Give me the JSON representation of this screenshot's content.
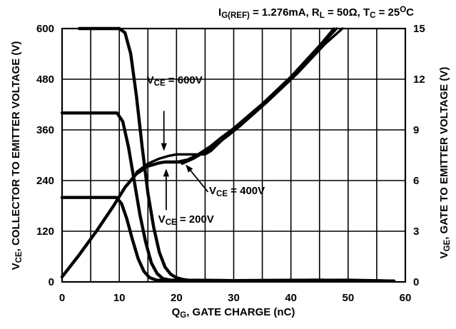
{
  "chart_data": {
    "type": "line",
    "title": {
      "parts": [
        {
          "t": "I",
          "s": "n"
        },
        {
          "t": "G(REF)",
          "s": "sub"
        },
        {
          "t": " = 1.276mA, R",
          "s": "n"
        },
        {
          "t": "L",
          "s": "sub"
        },
        {
          "t": " = 50Ω, T",
          "s": "n"
        },
        {
          "t": "C",
          "s": "sub"
        },
        {
          "t": " = 25",
          "s": "n"
        },
        {
          "t": "O",
          "s": "sup"
        },
        {
          "t": "C",
          "s": "n"
        }
      ]
    },
    "xlabel": {
      "parts": [
        {
          "t": "Q",
          "s": "n"
        },
        {
          "t": "G",
          "s": "sub"
        },
        {
          "t": ", GATE CHARGE (nC)",
          "s": "n"
        }
      ]
    },
    "ylabel_left": {
      "parts": [
        {
          "t": "V",
          "s": "n"
        },
        {
          "t": "CE",
          "s": "sub"
        },
        {
          "t": ", COLLECTOR TO EMITTER VOLTAGE (V)",
          "s": "n"
        }
      ]
    },
    "ylabel_right": {
      "parts": [
        {
          "t": "V",
          "s": "n"
        },
        {
          "t": "GE",
          "s": "sub"
        },
        {
          "t": ", GATE TO EMITTER VOLTAGE (V)",
          "s": "n"
        }
      ]
    },
    "xlim": [
      0,
      60
    ],
    "ylim_left": [
      0,
      600
    ],
    "ylim_right": [
      0,
      15
    ],
    "x_ticks": [
      0,
      10,
      20,
      30,
      40,
      50,
      60
    ],
    "y_left_ticks": [
      0,
      120,
      240,
      360,
      480,
      600
    ],
    "y_right_ticks": [
      0,
      3,
      6,
      9,
      12,
      15
    ],
    "x_minor_grid": [
      5,
      15,
      25,
      35,
      45,
      55
    ],
    "grid": true,
    "series": [
      {
        "axis": "left",
        "points": [
          [
            3,
            600
          ],
          [
            10,
            600
          ],
          [
            11,
            590
          ],
          [
            12,
            540
          ],
          [
            13,
            440
          ],
          [
            14,
            320
          ],
          [
            15,
            210
          ],
          [
            16,
            130
          ],
          [
            17,
            70
          ],
          [
            18,
            35
          ],
          [
            19,
            18
          ],
          [
            20,
            10
          ],
          [
            21,
            6
          ],
          [
            22,
            4
          ],
          [
            30,
            3
          ],
          [
            45,
            4
          ],
          [
            58,
            2
          ]
        ]
      },
      {
        "axis": "left",
        "points": [
          [
            0,
            400
          ],
          [
            9.6,
            400
          ],
          [
            10.6,
            380
          ],
          [
            11.6,
            320
          ],
          [
            12.6,
            240
          ],
          [
            13.6,
            160
          ],
          [
            14.6,
            95
          ],
          [
            15.6,
            45
          ],
          [
            16.6,
            20
          ],
          [
            17.6,
            8
          ],
          [
            19,
            4
          ],
          [
            30,
            3
          ],
          [
            45,
            4
          ],
          [
            58,
            2
          ]
        ]
      },
      {
        "axis": "left",
        "points": [
          [
            0,
            200
          ],
          [
            9.5,
            200
          ],
          [
            10.4,
            185
          ],
          [
            11.3,
            150
          ],
          [
            12.3,
            100
          ],
          [
            13.3,
            55
          ],
          [
            14.3,
            25
          ],
          [
            15.3,
            10
          ],
          [
            16.5,
            4
          ],
          [
            20,
            2
          ],
          [
            35,
            3
          ],
          [
            50,
            4
          ],
          [
            58,
            2
          ]
        ]
      },
      {
        "axis": "right",
        "points": [
          [
            0,
            0.3
          ],
          [
            3,
            1.6
          ],
          [
            6,
            3.0
          ],
          [
            9,
            4.5
          ],
          [
            11,
            5.6
          ],
          [
            13,
            6.4
          ],
          [
            15,
            6.85
          ],
          [
            17,
            7.05
          ],
          [
            18,
            7.1
          ],
          [
            21,
            7.1
          ]
        ]
      },
      {
        "axis": "right",
        "points": [
          [
            13,
            6.5
          ],
          [
            15,
            7.0
          ],
          [
            17,
            7.3
          ],
          [
            18.5,
            7.45
          ],
          [
            20,
            7.55
          ],
          [
            25,
            7.55
          ],
          [
            26,
            7.75
          ],
          [
            28,
            8.4
          ],
          [
            30,
            9.1
          ],
          [
            35,
            10.5
          ],
          [
            40,
            12.0
          ],
          [
            45,
            13.9
          ],
          [
            48,
            15.0
          ]
        ]
      },
      {
        "axis": "right",
        "points": [
          [
            20,
            7.1
          ],
          [
            22,
            7.25
          ],
          [
            24,
            7.6
          ],
          [
            26,
            8.05
          ],
          [
            28,
            8.6
          ],
          [
            30,
            9.1
          ],
          [
            35,
            10.55
          ],
          [
            40,
            12.15
          ],
          [
            45,
            14.0
          ],
          [
            47.5,
            15.0
          ]
        ]
      },
      {
        "axis": "right",
        "points": [
          [
            21,
            7.0
          ],
          [
            23,
            7.3
          ],
          [
            25,
            7.7
          ],
          [
            27,
            8.15
          ],
          [
            29,
            8.65
          ],
          [
            31,
            9.2
          ],
          [
            36,
            10.7
          ],
          [
            41,
            12.3
          ],
          [
            46,
            14.1
          ],
          [
            49,
            15.0
          ]
        ]
      }
    ],
    "annotations": [
      {
        "parts": [
          {
            "t": "V",
            "s": "n"
          },
          {
            "t": "CE",
            "s": "sub"
          },
          {
            "t": " = 600V",
            "s": "n"
          }
        ],
        "text_at": [
          14.8,
          470
        ],
        "arrow_from": [
          17.8,
          405
        ],
        "arrow_to": [
          17.8,
          310
        ]
      },
      {
        "parts": [
          {
            "t": "V",
            "s": "n"
          },
          {
            "t": "CE",
            "s": "sub"
          },
          {
            "t": " = 400V",
            "s": "n"
          }
        ],
        "text_at": [
          25.7,
          208
        ],
        "arrow_from": [
          25.5,
          213
        ],
        "arrow_to": [
          21.6,
          278
        ]
      },
      {
        "parts": [
          {
            "t": "V",
            "s": "n"
          },
          {
            "t": "CE",
            "s": "sub"
          },
          {
            "t": " = 200V",
            "s": "n"
          }
        ],
        "text_at": [
          16.8,
          140
        ],
        "arrow_from": [
          18.2,
          170
        ],
        "arrow_to": [
          18.2,
          268
        ]
      }
    ]
  }
}
